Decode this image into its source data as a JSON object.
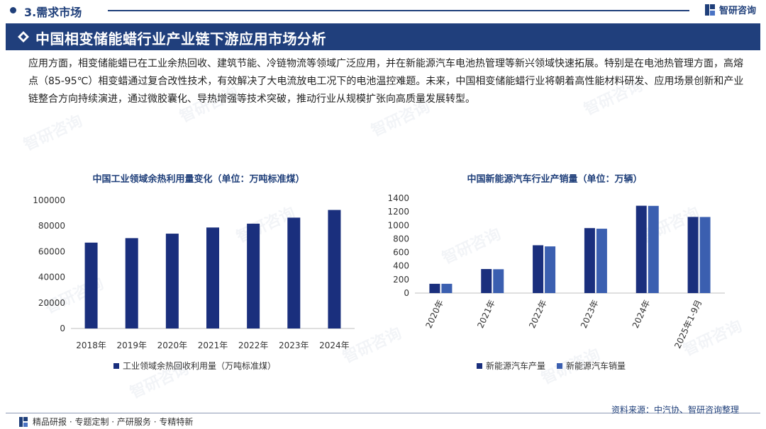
{
  "section": {
    "title": "3.需求市场"
  },
  "brand": {
    "name": "智研咨询"
  },
  "banner": {
    "title": "中国相变储能蜡行业产业链下游应用市场分析"
  },
  "intro": {
    "text": "应用方面，相变储能蜡已在工业余热回收、建筑节能、冷链物流等领域广泛应用，并在新能源汽车电池热管理等新兴领域快速拓展。特别是在电池热管理方面，高熔点（85-95℃）相变蜡通过复合改性技术，有效解决了大电流放电工况下的电池温控难题。未来，中国相变储能蜡行业将朝着高性能材料研发、应用场景创新和产业链整合方向持续演进，通过微胶囊化、导热增强等技术突破，推动行业从规模扩张向高质量发展转型。"
  },
  "watermark": {
    "text": "智研咨询"
  },
  "colors": {
    "primary": "#1a2f7d",
    "secondary": "#3b5fb0",
    "banner": "#203f7c"
  },
  "chart_data": [
    {
      "type": "bar",
      "title": "中国工业领域余热利用量变化（单位：万吨标准煤）",
      "categories": [
        "2018年",
        "2019年",
        "2020年",
        "2021年",
        "2022年",
        "2023年",
        "2024年"
      ],
      "series": [
        {
          "name": "工业领域余热回收利用量（万吨标准煤）",
          "values": [
            67000,
            70500,
            74000,
            78800,
            81800,
            86500,
            92500
          ]
        }
      ],
      "yticks": [
        "0",
        "20000",
        "40000",
        "60000",
        "80000",
        "100000"
      ],
      "ylim": [
        0,
        100000
      ],
      "grid": false,
      "legend": "bottom"
    },
    {
      "type": "bar",
      "title": "中国新能源汽车行业产销量（单位：万辆）",
      "categories": [
        "2020年",
        "2021年",
        "2022年",
        "2023年",
        "2024年",
        "2025年1-9月"
      ],
      "series": [
        {
          "name": "新能源汽车产量",
          "values": [
            137,
            355,
            706,
            959,
            1289,
            1124
          ]
        },
        {
          "name": "新能源汽车销量",
          "values": [
            137,
            352,
            689,
            950,
            1287,
            1123
          ]
        }
      ],
      "yticks": [
        "0",
        "200",
        "400",
        "600",
        "800",
        "1000",
        "1200",
        "1400"
      ],
      "ylim": [
        0,
        1400
      ],
      "grid": false,
      "legend": "bottom"
    }
  ],
  "footer": {
    "left": "精品研报 · 专题定制 · 产研服务 · 专精特新",
    "source": "资料来源：中汽协、智研咨询整理"
  }
}
